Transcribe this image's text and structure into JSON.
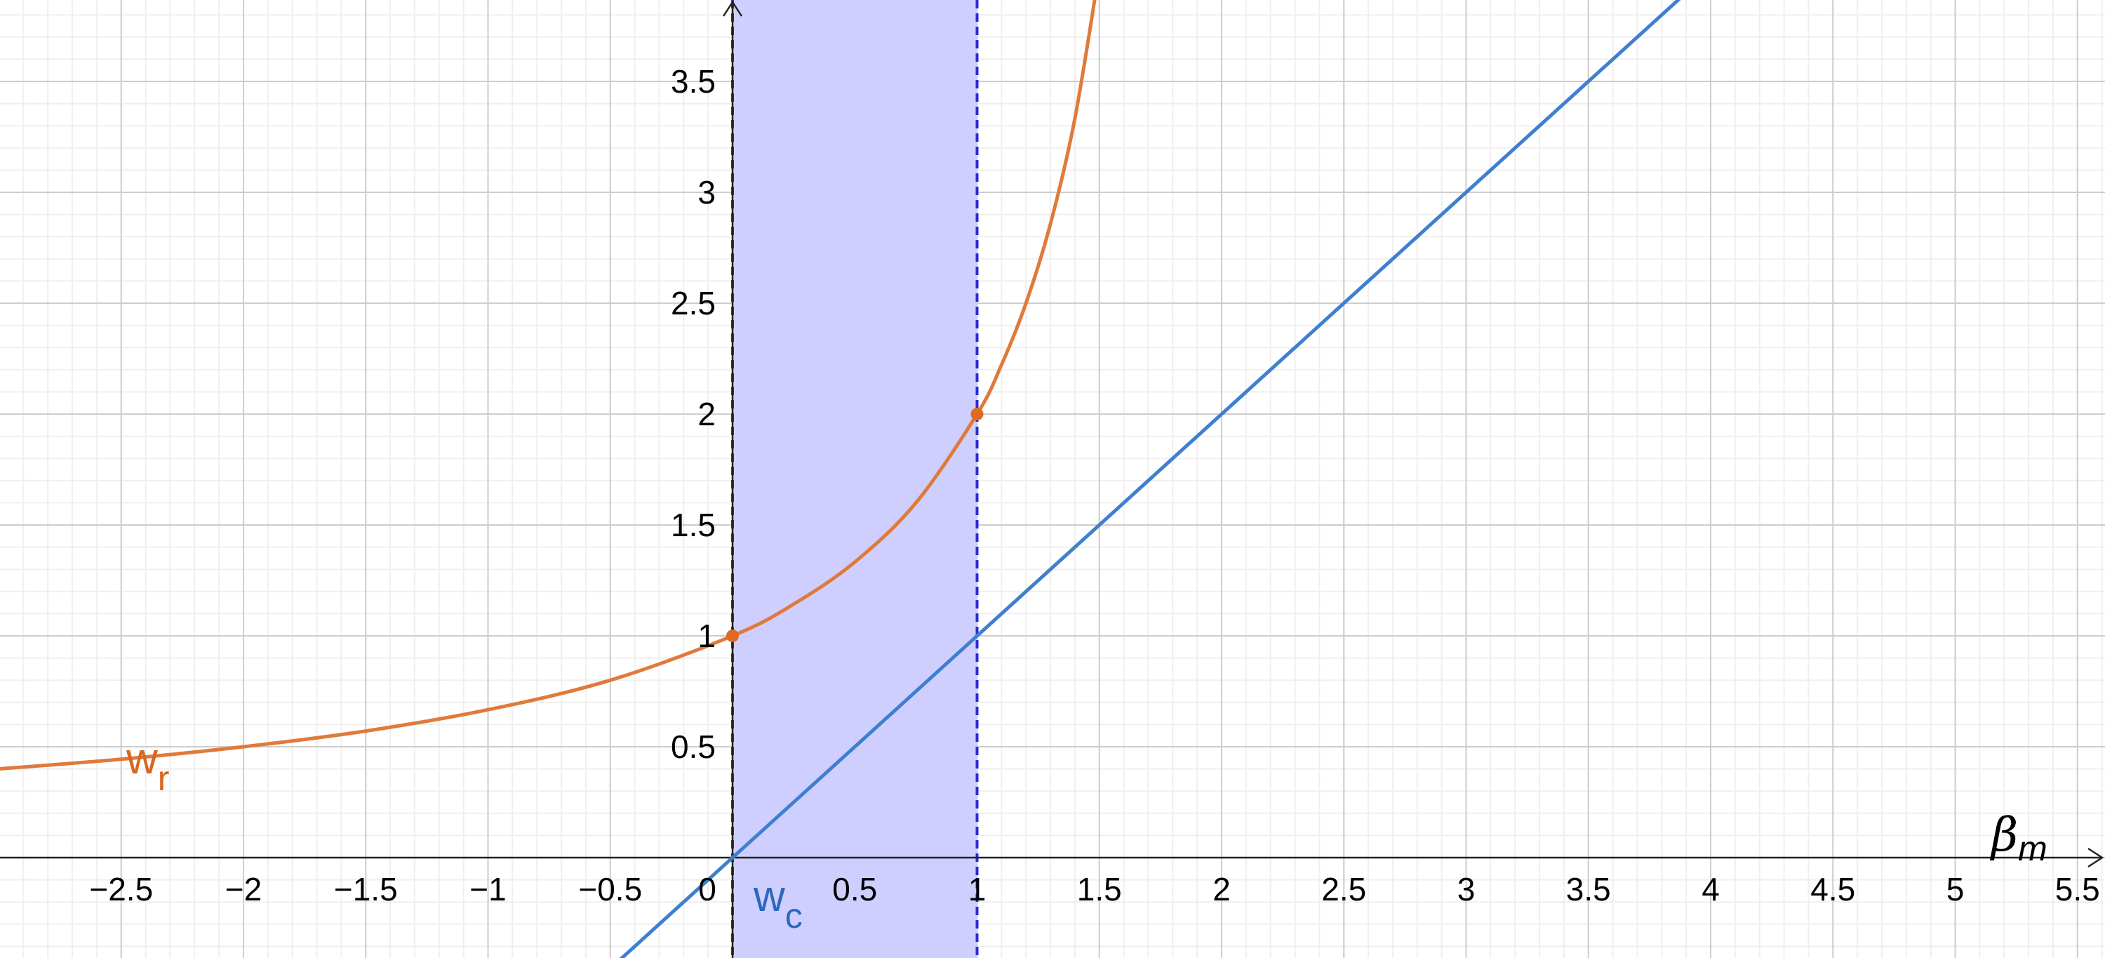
{
  "chart_data": {
    "type": "line",
    "title": "",
    "xlabel": "β",
    "xlabel_sub": "m",
    "ylabel": "",
    "xlim": [
      -3,
      5.6
    ],
    "ylim": [
      -0.45,
      3.85
    ],
    "grid": true,
    "x_ticks": [
      -2.5,
      -2,
      -1.5,
      -1,
      -0.5,
      0,
      0.5,
      1,
      1.5,
      2,
      2.5,
      3,
      3.5,
      4,
      4.5,
      5,
      5.5
    ],
    "x_tick_labels": [
      "−2.5",
      "−2",
      "−1.5",
      "−1",
      "−0.5",
      "0",
      "0.5",
      "1",
      "1.5",
      "2",
      "2.5",
      "3",
      "3.5",
      "4",
      "4.5",
      "5",
      "5.5"
    ],
    "y_ticks": [
      0.5,
      1,
      1.5,
      2,
      2.5,
      3,
      3.5
    ],
    "y_tick_labels": [
      "0.5",
      "1",
      "1.5",
      "2",
      "2.5",
      "3",
      "3.5"
    ],
    "shaded_region": {
      "x_from": 0,
      "x_to": 1,
      "color": "#ccccff",
      "border_color": "#2b2bd6"
    },
    "series": [
      {
        "name": "w",
        "name_sub": "r",
        "color": "#e07a3a",
        "x": [
          -3,
          -2.5,
          -2,
          -1.5,
          -1,
          -0.5,
          0,
          0.25,
          0.5,
          0.75,
          1,
          1.1,
          1.2,
          1.3,
          1.4,
          1.5
        ],
        "y": [
          0.4,
          0.444,
          0.5,
          0.571,
          0.667,
          0.8,
          1,
          1.143,
          1.333,
          1.6,
          2,
          2.222,
          2.5,
          2.857,
          3.333,
          4
        ],
        "points": [
          [
            0,
            1
          ],
          [
            1,
            2
          ]
        ]
      },
      {
        "name": "w",
        "name_sub": "c",
        "color": "#3f7fd0",
        "x": [
          -0.5,
          4
        ],
        "y": [
          -0.5,
          4
        ]
      }
    ]
  }
}
